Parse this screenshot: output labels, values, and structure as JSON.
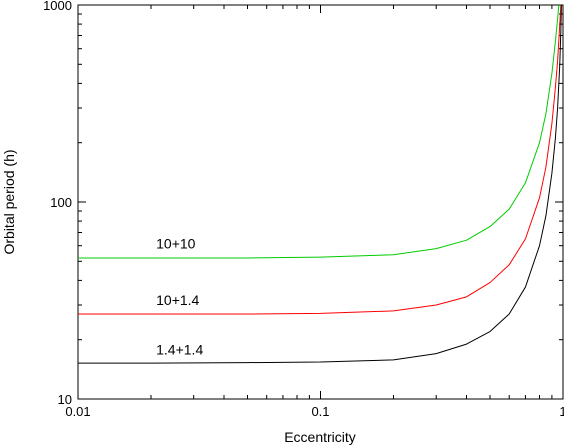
{
  "chart_data": {
    "type": "line",
    "title": "",
    "xlabel": "Eccentricity",
    "ylabel": "Orbital period (h)",
    "xscale": "log",
    "yscale": "log",
    "xlim": [
      0.01,
      1
    ],
    "ylim": [
      10,
      1000
    ],
    "x_ticks": [
      {
        "value": 0.01,
        "label": "0.01"
      },
      {
        "value": 0.1,
        "label": "0.1"
      },
      {
        "value": 1,
        "label": "1"
      }
    ],
    "y_ticks": [
      {
        "value": 10,
        "label": "10"
      },
      {
        "value": 100,
        "label": "100"
      },
      {
        "value": 1000,
        "label": "1000"
      }
    ],
    "grid": false,
    "legend": "none",
    "series": [
      {
        "annotation": "10+10",
        "color": "#00cc00",
        "x": [
          0.01,
          0.02,
          0.05,
          0.1,
          0.2,
          0.3,
          0.4,
          0.5,
          0.6,
          0.7,
          0.8,
          0.85,
          0.9,
          0.93,
          0.95,
          0.96,
          0.97
        ],
        "y": [
          52,
          52,
          52,
          52.5,
          54,
          58,
          64,
          75,
          92,
          125,
          200,
          280,
          450,
          650,
          850,
          980,
          1000
        ]
      },
      {
        "annotation": "10+1.4",
        "color": "#ff0000",
        "x": [
          0.01,
          0.02,
          0.05,
          0.1,
          0.2,
          0.3,
          0.4,
          0.5,
          0.6,
          0.7,
          0.8,
          0.85,
          0.9,
          0.93,
          0.95,
          0.97,
          0.98
        ],
        "y": [
          27,
          27,
          27,
          27.2,
          28,
          30,
          33,
          39,
          48,
          65,
          105,
          150,
          250,
          380,
          520,
          800,
          1000
        ]
      },
      {
        "annotation": "1.4+1.4",
        "color": "#000000",
        "x": [
          0.01,
          0.02,
          0.05,
          0.1,
          0.2,
          0.3,
          0.4,
          0.5,
          0.6,
          0.7,
          0.8,
          0.85,
          0.9,
          0.93,
          0.95,
          0.97,
          0.98,
          0.985
        ],
        "y": [
          15.2,
          15.2,
          15.3,
          15.4,
          15.8,
          17,
          19,
          22,
          27,
          37,
          60,
          85,
          140,
          210,
          300,
          500,
          750,
          1000
        ]
      }
    ],
    "annotations": [
      {
        "text": "10+10",
        "x": 0.021,
        "y": 58
      },
      {
        "text": "10+1.4",
        "x": 0.021,
        "y": 30
      },
      {
        "text": "1.4+1.4",
        "x": 0.021,
        "y": 16.8
      }
    ]
  }
}
